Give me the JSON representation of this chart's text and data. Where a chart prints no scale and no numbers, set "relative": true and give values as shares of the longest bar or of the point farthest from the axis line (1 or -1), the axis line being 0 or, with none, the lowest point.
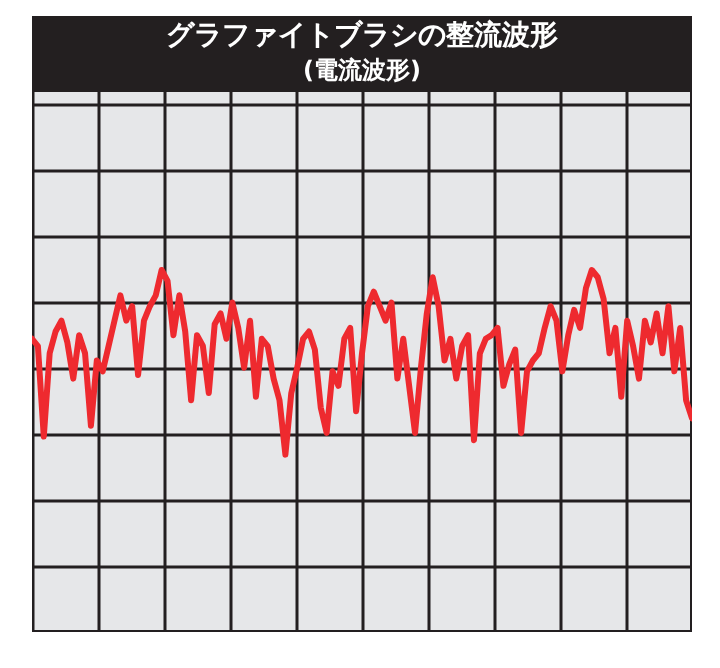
{
  "chart_data": {
    "type": "line",
    "title": "グラファイトブラシの整流波形",
    "subtitle": "(電流波形)",
    "relative": true,
    "grid": true,
    "categories": [
      null,
      null,
      null,
      null,
      null,
      null,
      null,
      null,
      null,
      null,
      null,
      null,
      null,
      null,
      null,
      null,
      null,
      null,
      null,
      null,
      null,
      null,
      null,
      null,
      null,
      null,
      null,
      null,
      null,
      null,
      null,
      null,
      null,
      null,
      null,
      null,
      null,
      null,
      null,
      null,
      null,
      null,
      null,
      null,
      null,
      null,
      null,
      null,
      null,
      null,
      null,
      null,
      null,
      null,
      null,
      null,
      null,
      null,
      null,
      null,
      null,
      null,
      null,
      null,
      null,
      null,
      null,
      null,
      null,
      null,
      null,
      null,
      null,
      null,
      null,
      null,
      null,
      null,
      null,
      null,
      null,
      null,
      null,
      null,
      null,
      null,
      null,
      null,
      null,
      null,
      null,
      null,
      null,
      null,
      null,
      null,
      null,
      null,
      null,
      null,
      null,
      null,
      null,
      null,
      null,
      null,
      null,
      null,
      null,
      null,
      null,
      null,
      null
    ],
    "series": [
      {
        "color": "#ee2a2f",
        "values": [
          0.81,
          0.79,
          0.54,
          0.77,
          0.83,
          0.86,
          0.8,
          0.7,
          0.82,
          0.77,
          0.57,
          0.75,
          0.72,
          0.79,
          0.86,
          0.93,
          0.86,
          0.9,
          0.71,
          0.86,
          0.9,
          0.93,
          1,
          0.97,
          0.82,
          0.93,
          0.83,
          0.64,
          0.82,
          0.79,
          0.66,
          0.85,
          0.88,
          0.81,
          0.91,
          0.84,
          0.73,
          0.86,
          0.65,
          0.81,
          0.79,
          0.7,
          0.64,
          0.49,
          0.66,
          0.73,
          0.81,
          0.83,
          0.78,
          0.62,
          0.55,
          0.72,
          0.68,
          0.81,
          0.84,
          0.61,
          0.77,
          0.9,
          0.94,
          0.9,
          0.86,
          0.91,
          0.7,
          0.81,
          0.68,
          0.55,
          0.73,
          0.88,
          0.98,
          0.9,
          0.75,
          0.81,
          0.7,
          0.79,
          0.82,
          0.53,
          0.77,
          0.81,
          0.82,
          0.84,
          0.68,
          0.74,
          0.78,
          0.55,
          0.72,
          0.75,
          0.77,
          0.84,
          0.9,
          0.86,
          0.72,
          0.82,
          0.89,
          0.84,
          0.95,
          1,
          0.98,
          0.92,
          0.77,
          0.84,
          0.65,
          0.86,
          0.79,
          0.7,
          0.86,
          0.8,
          0.88,
          0.77,
          0.9,
          0.72,
          0.84,
          0.64,
          0.59
        ]
      }
    ]
  }
}
